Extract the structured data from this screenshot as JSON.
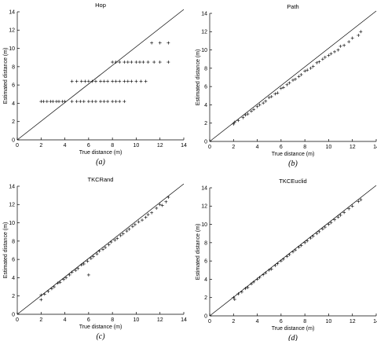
{
  "chart_data": [
    {
      "type": "scatter",
      "title": "Hop",
      "caption": "(a)",
      "xlabel": "True distance (m)",
      "ylabel": "Estimated distance (m)",
      "xlim": [
        0,
        14
      ],
      "ylim": [
        0,
        14
      ],
      "xticks": [
        "0",
        "2",
        "4",
        "6",
        "8",
        "10",
        "12",
        "14"
      ],
      "yticks": [
        "0",
        "2",
        "4",
        "6",
        "8",
        "10",
        "12",
        "14"
      ],
      "reference_line": "y = x",
      "marker": "+",
      "series": [
        {
          "points": [
            [
              2.0,
              4.2
            ],
            [
              2.2,
              4.2
            ],
            [
              2.5,
              4.2
            ],
            [
              2.8,
              4.2
            ],
            [
              3.0,
              4.2
            ],
            [
              3.3,
              4.2
            ],
            [
              3.5,
              4.2
            ],
            [
              3.8,
              4.2
            ],
            [
              4.0,
              4.2
            ],
            [
              4.6,
              4.2
            ],
            [
              5.0,
              4.2
            ],
            [
              5.3,
              4.2
            ],
            [
              5.6,
              4.2
            ],
            [
              6.0,
              4.2
            ],
            [
              6.3,
              4.2
            ],
            [
              6.6,
              4.2
            ],
            [
              7.0,
              4.2
            ],
            [
              7.3,
              4.2
            ],
            [
              7.6,
              4.2
            ],
            [
              8.0,
              4.2
            ],
            [
              8.3,
              4.2
            ],
            [
              8.6,
              4.2
            ],
            [
              9.0,
              4.2
            ],
            [
              4.6,
              6.4
            ],
            [
              5.0,
              6.4
            ],
            [
              5.4,
              6.4
            ],
            [
              5.7,
              6.4
            ],
            [
              6.0,
              6.4
            ],
            [
              6.3,
              6.4
            ],
            [
              6.6,
              6.4
            ],
            [
              7.0,
              6.4
            ],
            [
              7.3,
              6.4
            ],
            [
              7.6,
              6.4
            ],
            [
              8.0,
              6.4
            ],
            [
              8.3,
              6.4
            ],
            [
              8.6,
              6.4
            ],
            [
              9.0,
              6.4
            ],
            [
              9.3,
              6.4
            ],
            [
              9.6,
              6.4
            ],
            [
              10.0,
              6.4
            ],
            [
              10.4,
              6.4
            ],
            [
              10.8,
              6.4
            ],
            [
              8.0,
              8.5
            ],
            [
              8.3,
              8.5
            ],
            [
              8.6,
              8.5
            ],
            [
              9.0,
              8.5
            ],
            [
              9.3,
              8.5
            ],
            [
              9.6,
              8.5
            ],
            [
              10.0,
              8.5
            ],
            [
              10.3,
              8.5
            ],
            [
              10.6,
              8.5
            ],
            [
              11.0,
              8.5
            ],
            [
              11.5,
              8.5
            ],
            [
              12.0,
              8.5
            ],
            [
              12.7,
              8.5
            ],
            [
              11.3,
              10.6
            ],
            [
              12.0,
              10.6
            ],
            [
              12.7,
              10.6
            ]
          ]
        }
      ]
    },
    {
      "type": "scatter",
      "title": "Path",
      "caption": "(b)",
      "xlabel": "True distance (m)",
      "ylabel": "Estimated distance (m)",
      "xlim": [
        0,
        14
      ],
      "ylim": [
        0,
        14
      ],
      "xticks": [
        "0",
        "2",
        "4",
        "6",
        "8",
        "10",
        "12",
        "14"
      ],
      "yticks": [
        "0",
        "2",
        "4",
        "6",
        "8",
        "10",
        "12",
        "14"
      ],
      "reference_line": "y = x",
      "marker": "+",
      "series": [
        {
          "points": [
            [
              2.0,
              1.9
            ],
            [
              2.1,
              2.1
            ],
            [
              2.4,
              2.3
            ],
            [
              2.8,
              2.6
            ],
            [
              3.0,
              2.9
            ],
            [
              3.2,
              3.0
            ],
            [
              3.5,
              3.3
            ],
            [
              3.7,
              3.5
            ],
            [
              4.0,
              3.8
            ],
            [
              4.2,
              4.0
            ],
            [
              4.5,
              4.2
            ],
            [
              4.7,
              4.4
            ],
            [
              5.0,
              4.8
            ],
            [
              5.2,
              4.9
            ],
            [
              5.5,
              5.2
            ],
            [
              5.7,
              5.3
            ],
            [
              6.0,
              5.8
            ],
            [
              6.2,
              5.9
            ],
            [
              6.5,
              6.2
            ],
            [
              6.7,
              6.4
            ],
            [
              7.0,
              6.7
            ],
            [
              7.2,
              6.8
            ],
            [
              7.5,
              7.1
            ],
            [
              7.7,
              7.3
            ],
            [
              8.0,
              7.7
            ],
            [
              8.2,
              7.8
            ],
            [
              8.5,
              8.0
            ],
            [
              8.7,
              8.2
            ],
            [
              9.0,
              8.6
            ],
            [
              9.2,
              8.7
            ],
            [
              9.5,
              9.0
            ],
            [
              9.7,
              9.2
            ],
            [
              10.0,
              9.4
            ],
            [
              10.2,
              9.6
            ],
            [
              10.5,
              9.8
            ],
            [
              10.8,
              10.0
            ],
            [
              11.0,
              10.4
            ],
            [
              11.3,
              10.5
            ],
            [
              11.7,
              10.9
            ],
            [
              12.0,
              11.3
            ],
            [
              12.5,
              11.6
            ],
            [
              12.7,
              12.0
            ]
          ]
        }
      ]
    },
    {
      "type": "scatter",
      "title": "TKCRand",
      "caption": "(c)",
      "xlabel": "True distance (m)",
      "ylabel": "Estimated distance (m)",
      "xlim": [
        0,
        14
      ],
      "ylim": [
        0,
        14
      ],
      "xticks": [
        "0",
        "2",
        "4",
        "6",
        "8",
        "10",
        "12",
        "14"
      ],
      "yticks": [
        "0",
        "2",
        "4",
        "6",
        "8",
        "10",
        "12",
        "14"
      ],
      "reference_line": "y = x",
      "marker": "+",
      "series": [
        {
          "points": [
            [
              2.0,
              1.6
            ],
            [
              2.0,
              2.1
            ],
            [
              2.3,
              2.2
            ],
            [
              2.6,
              2.5
            ],
            [
              2.9,
              2.8
            ],
            [
              3.1,
              3.0
            ],
            [
              3.4,
              3.4
            ],
            [
              3.6,
              3.5
            ],
            [
              3.9,
              3.8
            ],
            [
              4.1,
              4.0
            ],
            [
              4.4,
              4.3
            ],
            [
              4.6,
              4.6
            ],
            [
              4.9,
              4.8
            ],
            [
              5.1,
              5.0
            ],
            [
              5.4,
              5.4
            ],
            [
              5.6,
              5.5
            ],
            [
              5.9,
              5.8
            ],
            [
              6.0,
              4.3
            ],
            [
              6.2,
              6.1
            ],
            [
              6.4,
              6.3
            ],
            [
              6.7,
              6.6
            ],
            [
              6.9,
              6.9
            ],
            [
              7.2,
              7.1
            ],
            [
              7.4,
              7.3
            ],
            [
              7.7,
              7.6
            ],
            [
              7.9,
              7.9
            ],
            [
              8.2,
              8.1
            ],
            [
              8.4,
              8.3
            ],
            [
              8.7,
              8.6
            ],
            [
              8.9,
              8.8
            ],
            [
              9.2,
              9.1
            ],
            [
              9.4,
              9.3
            ],
            [
              9.7,
              9.6
            ],
            [
              9.9,
              9.8
            ],
            [
              10.2,
              10.1
            ],
            [
              10.5,
              10.3
            ],
            [
              10.8,
              10.6
            ],
            [
              11.0,
              10.9
            ],
            [
              11.3,
              11.1
            ],
            [
              11.7,
              11.6
            ],
            [
              12.0,
              12.0
            ],
            [
              12.2,
              11.9
            ],
            [
              12.5,
              12.3
            ],
            [
              12.7,
              12.8
            ]
          ]
        }
      ]
    },
    {
      "type": "scatter",
      "title": "TKCEuclid",
      "caption": "(d)",
      "xlabel": "True distance (m)",
      "ylabel": "Estimated distance (m)",
      "xlim": [
        0,
        14
      ],
      "ylim": [
        0,
        14
      ],
      "xticks": [
        "0",
        "2",
        "4",
        "6",
        "8",
        "10",
        "12",
        "14"
      ],
      "yticks": [
        "0",
        "2",
        "4",
        "6",
        "8",
        "10",
        "12",
        "14"
      ],
      "reference_line": "y = x",
      "marker": "+",
      "series": [
        {
          "points": [
            [
              2.0,
              2.0
            ],
            [
              2.1,
              1.8
            ],
            [
              2.4,
              2.4
            ],
            [
              2.7,
              2.6
            ],
            [
              3.0,
              3.0
            ],
            [
              3.2,
              3.1
            ],
            [
              3.5,
              3.5
            ],
            [
              3.7,
              3.7
            ],
            [
              4.0,
              4.0
            ],
            [
              4.2,
              4.2
            ],
            [
              4.5,
              4.5
            ],
            [
              4.7,
              4.7
            ],
            [
              5.0,
              5.0
            ],
            [
              5.2,
              5.1
            ],
            [
              5.5,
              5.5
            ],
            [
              5.7,
              5.7
            ],
            [
              6.0,
              6.0
            ],
            [
              6.2,
              6.2
            ],
            [
              6.5,
              6.5
            ],
            [
              6.7,
              6.7
            ],
            [
              7.0,
              7.0
            ],
            [
              7.2,
              7.2
            ],
            [
              7.5,
              7.5
            ],
            [
              7.7,
              7.7
            ],
            [
              8.0,
              8.0
            ],
            [
              8.2,
              8.2
            ],
            [
              8.5,
              8.5
            ],
            [
              8.7,
              8.7
            ],
            [
              9.0,
              9.0
            ],
            [
              9.2,
              9.2
            ],
            [
              9.5,
              9.5
            ],
            [
              9.7,
              9.7
            ],
            [
              10.0,
              10.0
            ],
            [
              10.2,
              10.2
            ],
            [
              10.5,
              10.5
            ],
            [
              10.8,
              10.8
            ],
            [
              11.0,
              11.0
            ],
            [
              11.3,
              11.3
            ],
            [
              11.7,
              11.7
            ],
            [
              12.0,
              12.0
            ],
            [
              12.5,
              12.5
            ],
            [
              12.7,
              12.7
            ]
          ]
        }
      ]
    }
  ]
}
